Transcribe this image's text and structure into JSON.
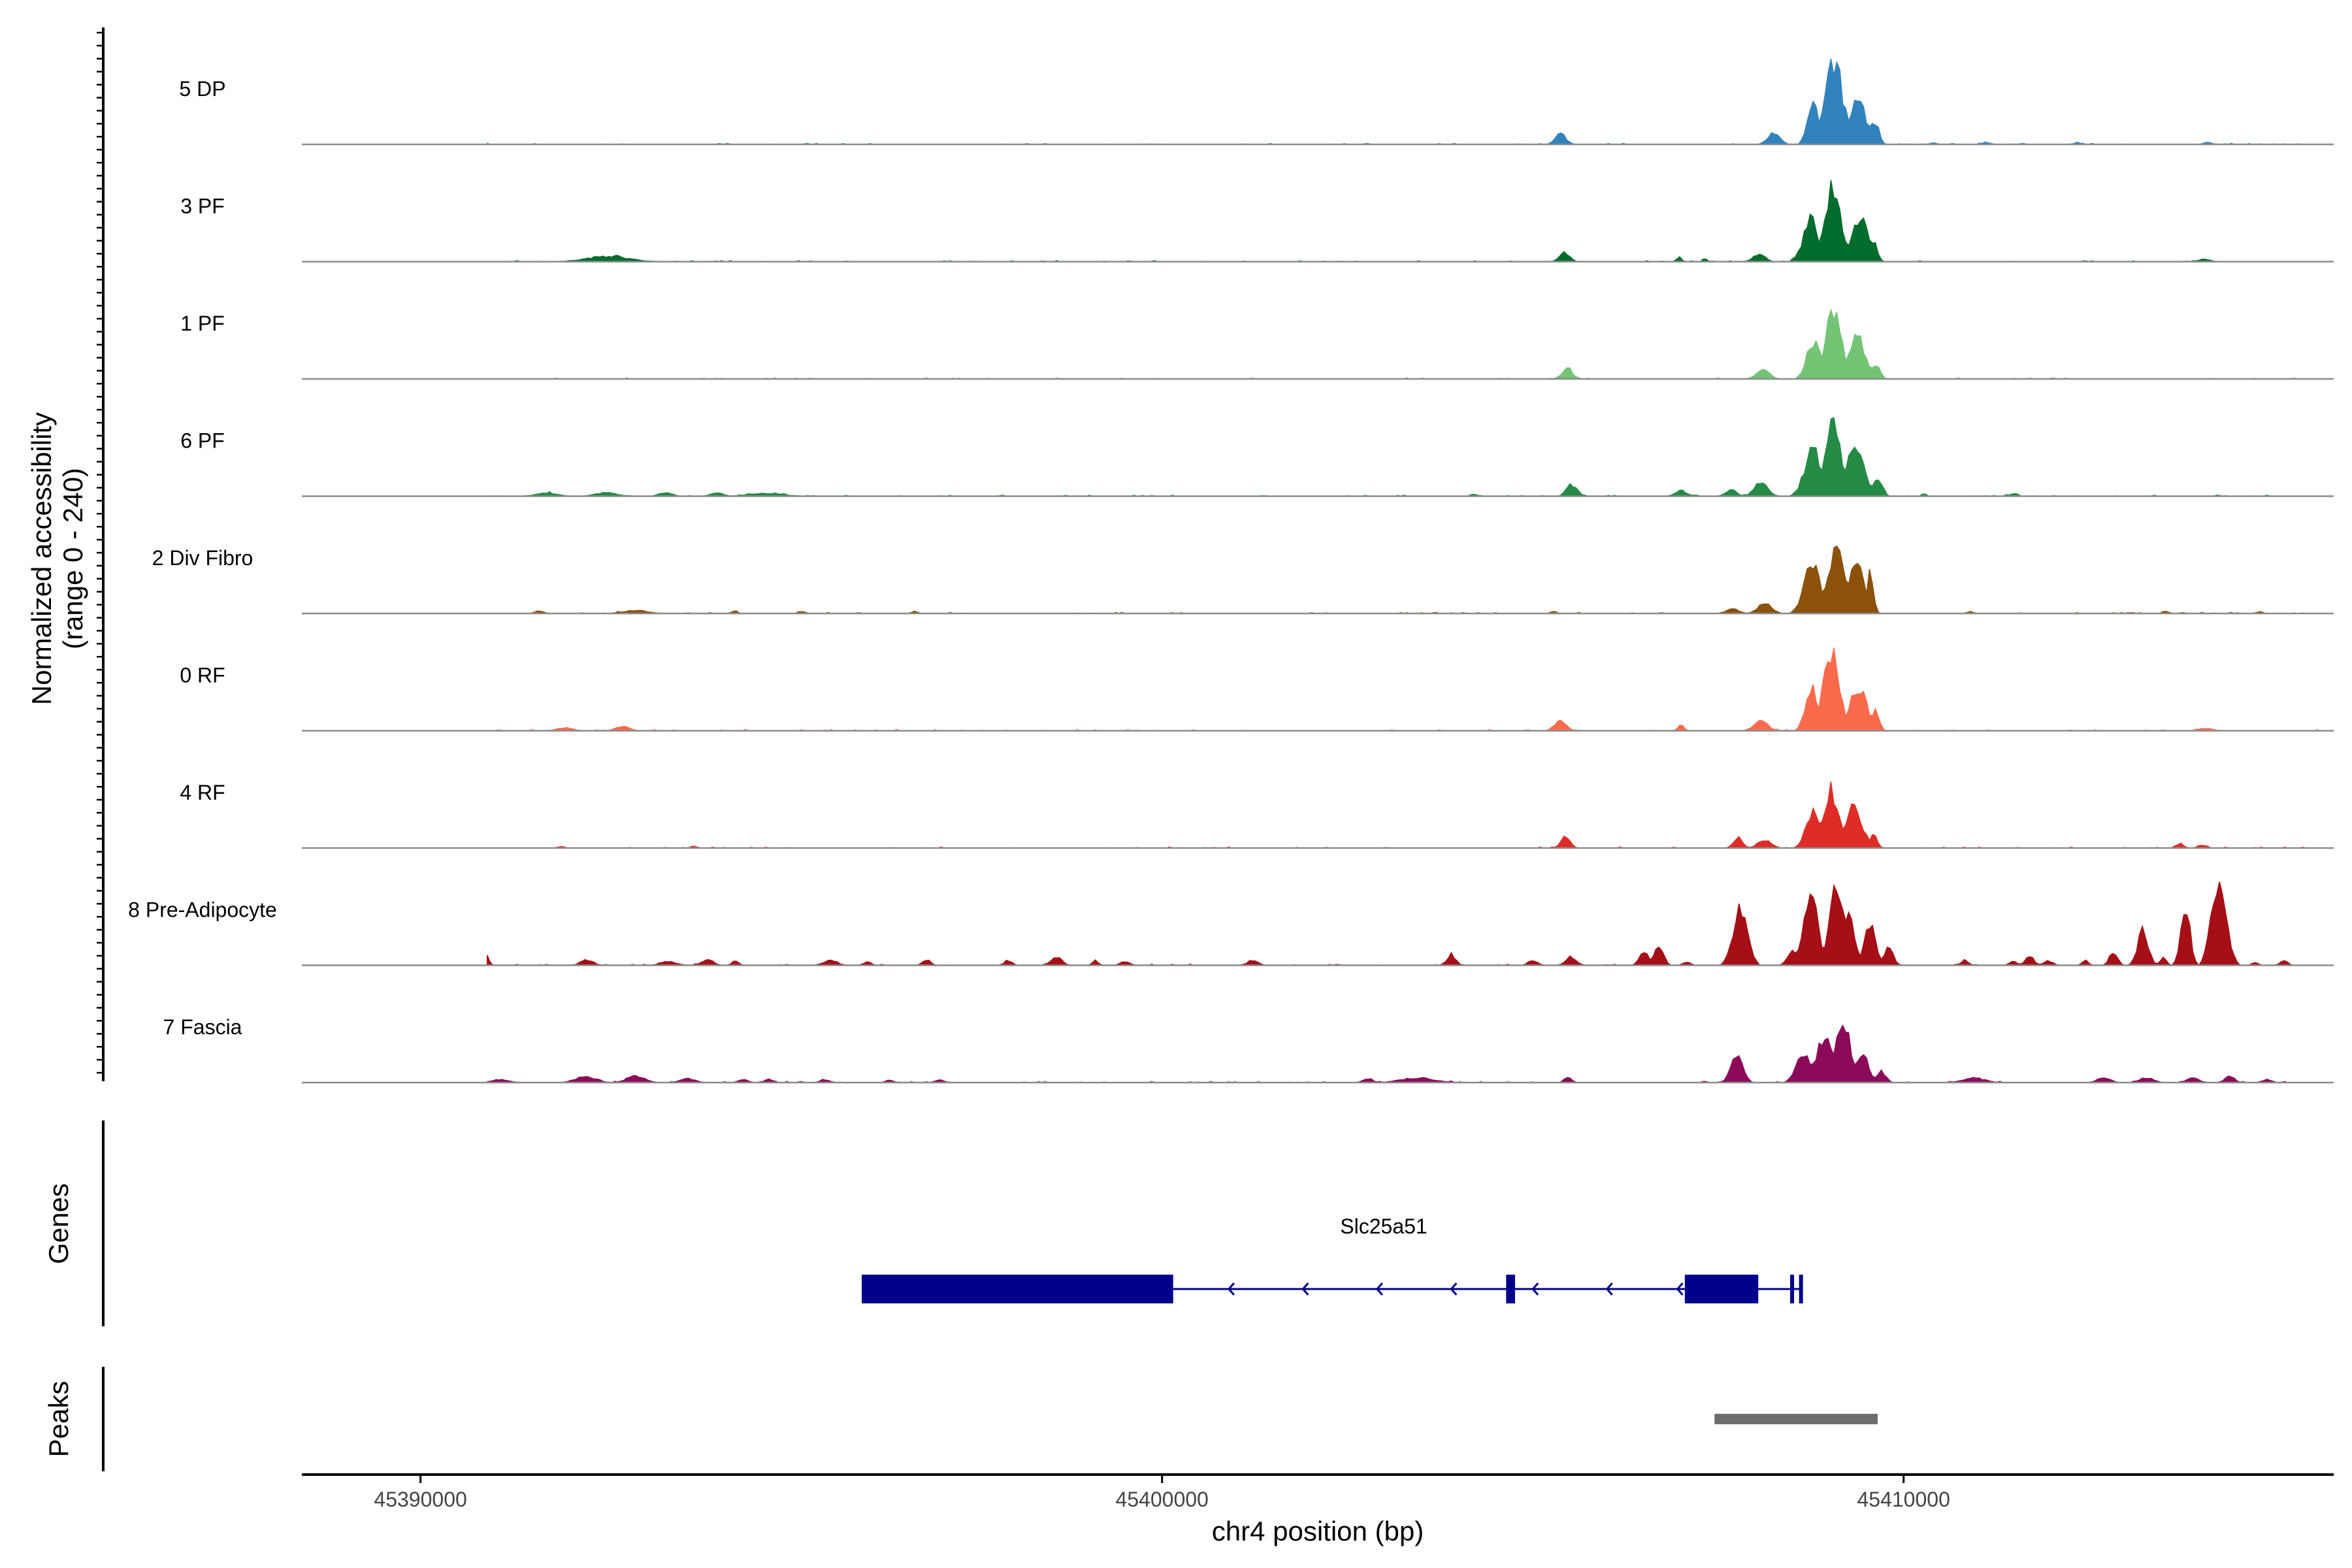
{
  "chart_data": {
    "type": "area",
    "title": "",
    "ylabel_line1": "Normalized accessibility",
    "ylabel_line2": "(range 0 - 240)",
    "yrange": [
      0,
      240
    ],
    "xlabel": "chr4 position (bp)",
    "xlim": [
      45388400,
      45415800
    ],
    "xticks": [
      45390000,
      45400000,
      45410000
    ],
    "xtick_labels": [
      "45390000",
      "45400000",
      "45410000"
    ],
    "tracks": [
      {
        "name": "5 DP",
        "color": "#3182bd",
        "peaks": [
          [
            45410290,
            45410510,
            4
          ],
          [
            45411540,
            45411660,
            3
          ],
          [
            45405200,
            45405550,
            28
          ],
          [
            45408050,
            45408450,
            30
          ],
          [
            45408600,
            45408960,
            118
          ],
          [
            45408760,
            45409360,
            210
          ],
          [
            45409100,
            45409660,
            120
          ],
          [
            45409480,
            45409740,
            62
          ],
          [
            45410990,
            45411250,
            5
          ],
          [
            45412220,
            45412460,
            4
          ],
          [
            45413980,
            45414220,
            6
          ]
        ]
      },
      {
        "name": "3 PF",
        "color": "#006d2c",
        "peaks": [
          [
            45391850,
            45393200,
            14
          ],
          [
            45392440,
            45392840,
            16
          ],
          [
            45405250,
            45405600,
            22
          ],
          [
            45406890,
            45407050,
            12
          ],
          [
            45407260,
            45407380,
            10
          ],
          [
            45407850,
            45408250,
            20
          ],
          [
            45408500,
            45409000,
            108
          ],
          [
            45408790,
            45409310,
            190
          ],
          [
            45409120,
            45409700,
            118
          ],
          [
            45409480,
            45409720,
            52
          ],
          [
            45413850,
            45414250,
            6
          ]
        ]
      },
      {
        "name": "1 PF",
        "color": "#74c476",
        "peaks": [
          [
            45405290,
            45405640,
            28
          ],
          [
            45407900,
            45408300,
            28
          ],
          [
            45408560,
            45409010,
            100
          ],
          [
            45408780,
            45409320,
            180
          ],
          [
            45409100,
            45409640,
            110
          ],
          [
            45409480,
            45409760,
            38
          ]
        ]
      },
      {
        "name": "6 PF",
        "color": "#238b45",
        "peaks": [
          [
            45391350,
            45392050,
            8
          ],
          [
            45392150,
            45392850,
            9
          ],
          [
            45393100,
            45393500,
            10
          ],
          [
            45393800,
            45394200,
            9
          ],
          [
            45394100,
            45395200,
            8
          ],
          [
            45404100,
            45404300,
            6
          ],
          [
            45405350,
            45405700,
            30
          ],
          [
            45406800,
            45407200,
            14
          ],
          [
            45407500,
            45407850,
            18
          ],
          [
            45407850,
            45408300,
            34
          ],
          [
            45408500,
            45409050,
            120
          ],
          [
            45408780,
            45409320,
            180
          ],
          [
            45409050,
            45409650,
            130
          ],
          [
            45409480,
            45409800,
            50
          ],
          [
            45410200,
            45410350,
            7
          ],
          [
            45411350,
            45411600,
            6
          ]
        ]
      },
      {
        "name": "2 Div Fibro",
        "color": "#8c510a",
        "peaks": [
          [
            45391450,
            45391750,
            6
          ],
          [
            45392500,
            45393300,
            8
          ],
          [
            45394130,
            45394330,
            6
          ],
          [
            45395050,
            45395250,
            5
          ],
          [
            45396560,
            45396760,
            5
          ],
          [
            45405180,
            45405380,
            5
          ],
          [
            45407500,
            45407900,
            12
          ],
          [
            45407900,
            45408350,
            28
          ],
          [
            45408500,
            45409050,
            130
          ],
          [
            45408800,
            45409400,
            170
          ],
          [
            45409100,
            45409600,
            140
          ],
          [
            45409440,
            45409660,
            100
          ],
          [
            45410800,
            45411000,
            5
          ],
          [
            45413430,
            45413630,
            6
          ],
          [
            45414700,
            45414900,
            5
          ]
        ]
      },
      {
        "name": "0 RF",
        "color": "#fb6a4a",
        "peaks": [
          [
            45391700,
            45392200,
            8
          ],
          [
            45392500,
            45392950,
            11
          ],
          [
            45405200,
            45405550,
            28
          ],
          [
            45406900,
            45407100,
            14
          ],
          [
            45407850,
            45408300,
            26
          ],
          [
            45408550,
            45408990,
            108
          ],
          [
            45408750,
            45409290,
            205
          ],
          [
            45409110,
            45409670,
            118
          ],
          [
            45409500,
            45409740,
            56
          ],
          [
            45413850,
            45414300,
            6
          ]
        ]
      },
      {
        "name": "4 RF",
        "color": "#de2d26",
        "peaks": [
          [
            45393590,
            45393790,
            5
          ],
          [
            45405290,
            45405590,
            32
          ],
          [
            45407620,
            45407920,
            28
          ],
          [
            45407900,
            45408350,
            20
          ],
          [
            45408550,
            45409010,
            90
          ],
          [
            45408750,
            45409290,
            150
          ],
          [
            45409050,
            45409610,
            108
          ],
          [
            45409470,
            45409710,
            34
          ],
          [
            45413600,
            45413850,
            12
          ],
          [
            45413900,
            45414150,
            8
          ],
          [
            45391800,
            45392000,
            4
          ]
        ]
      },
      {
        "name": "8 Pre-Adipocyte",
        "color": "#a50f15",
        "peaks": [
          [
            45390520,
            45390780,
            20
          ],
          [
            45390780,
            45390960,
            38
          ],
          [
            45392050,
            45392450,
            14
          ],
          [
            45393100,
            45393600,
            10
          ],
          [
            45393700,
            45394050,
            16
          ],
          [
            45394150,
            45394350,
            13
          ],
          [
            45395300,
            45395750,
            12
          ],
          [
            45395900,
            45396150,
            9
          ],
          [
            45396700,
            45396950,
            15
          ],
          [
            45397800,
            45398050,
            13
          ],
          [
            45398400,
            45398750,
            22
          ],
          [
            45399000,
            45399200,
            12
          ],
          [
            45399350,
            45399650,
            10
          ],
          [
            45401050,
            45401400,
            12
          ],
          [
            45403750,
            45404050,
            28
          ],
          [
            45404850,
            45405150,
            12
          ],
          [
            45405350,
            45405700,
            16
          ],
          [
            45405350,
            45405650,
            22
          ],
          [
            45406350,
            45406650,
            40
          ],
          [
            45406550,
            45406850,
            50
          ],
          [
            45406950,
            45407200,
            8
          ],
          [
            45407500,
            45407800,
            12
          ],
          [
            45407550,
            45408050,
            140
          ],
          [
            45408350,
            45408650,
            42
          ],
          [
            45408500,
            45409000,
            170
          ],
          [
            45408850,
            45409350,
            210
          ],
          [
            45409050,
            45409450,
            140
          ],
          [
            45409350,
            45409750,
            100
          ],
          [
            45409650,
            45409950,
            45
          ],
          [
            45410700,
            45410950,
            12
          ],
          [
            45411350,
            45411600,
            10
          ],
          [
            45411550,
            45411850,
            22
          ],
          [
            45411800,
            45412100,
            12
          ],
          [
            45412350,
            45412550,
            13
          ],
          [
            45412700,
            45412950,
            38
          ],
          [
            45413050,
            45413400,
            90
          ],
          [
            45413400,
            45413600,
            20
          ],
          [
            45413650,
            45413950,
            155
          ],
          [
            45414000,
            45414500,
            210
          ],
          [
            45414650,
            45414800,
            8
          ],
          [
            45415000,
            45415250,
            10
          ]
        ]
      },
      {
        "name": "7 Fascia",
        "color": "#8c0a5a",
        "peaks": [
          [
            45390800,
            45391350,
            8
          ],
          [
            45391900,
            45392550,
            17
          ],
          [
            45392600,
            45393200,
            16
          ],
          [
            45393350,
            45393850,
            10
          ],
          [
            45394200,
            45394500,
            9
          ],
          [
            45394550,
            45394850,
            8
          ],
          [
            45395300,
            45395600,
            7
          ],
          [
            45396200,
            45396450,
            6
          ],
          [
            45396850,
            45397150,
            7
          ],
          [
            45402600,
            45402950,
            9
          ],
          [
            45402900,
            45404000,
            12
          ],
          [
            45405350,
            45405600,
            14
          ],
          [
            45407500,
            45407900,
            20
          ],
          [
            45407550,
            45407950,
            68
          ],
          [
            45408400,
            45408900,
            68
          ],
          [
            45408650,
            45409200,
            115
          ],
          [
            45408900,
            45409450,
            150
          ],
          [
            45409250,
            45409650,
            80
          ],
          [
            45409550,
            45409850,
            28
          ],
          [
            45410600,
            45411300,
            12
          ],
          [
            45412500,
            45412900,
            14
          ],
          [
            45413050,
            45413500,
            13
          ],
          [
            45413700,
            45414100,
            12
          ],
          [
            45414250,
            45414550,
            18
          ],
          [
            45414750,
            45415050,
            8
          ]
        ]
      }
    ],
    "gene_track_label": "Genes",
    "gene": {
      "name": "Slc25a51",
      "strand": "-",
      "start": 45395950,
      "end": 45408630,
      "exons": [
        [
          45395950,
          45400150
        ],
        [
          45404640,
          45404760
        ],
        [
          45407050,
          45408040
        ],
        [
          45408470,
          45408520
        ],
        [
          45408590,
          45408630
        ]
      ],
      "arrows": [
        45400900,
        45401900,
        45402900,
        45403900,
        45405000,
        45406000,
        45406950
      ]
    },
    "peak_track_label": "Peaks",
    "peaks_track": [
      [
        45407450,
        45409650
      ]
    ]
  }
}
